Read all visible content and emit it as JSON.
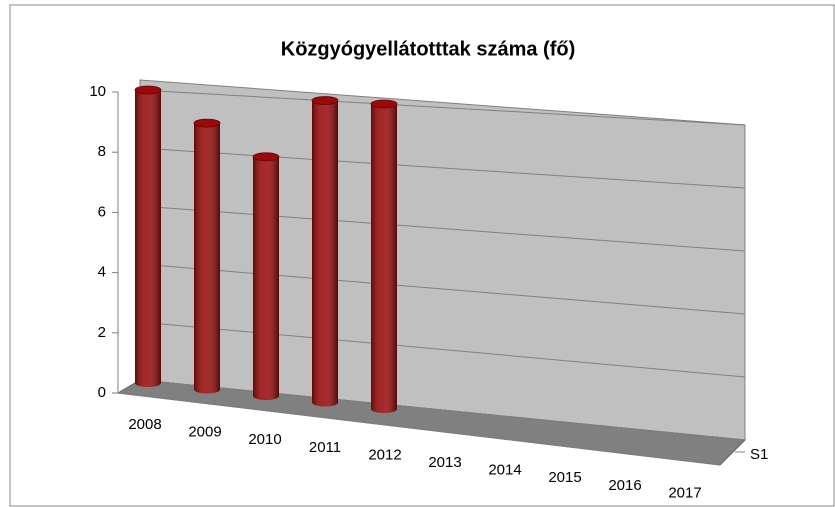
{
  "chart_data": {
    "type": "bar3d",
    "title": "Közgyógyellátotttak száma (fő)",
    "categories": [
      "2008",
      "2009",
      "2010",
      "2011",
      "2012",
      "2013",
      "2014",
      "2015",
      "2016",
      "2017"
    ],
    "series": [
      {
        "name": "S1",
        "color": "#9b0a0a",
        "values": [
          10,
          9,
          8,
          10,
          10,
          null,
          null,
          null,
          null,
          null
        ]
      }
    ],
    "ylim": [
      0,
      10
    ],
    "yticks": [
      0,
      2,
      4,
      6,
      8,
      10
    ],
    "grid": true
  }
}
